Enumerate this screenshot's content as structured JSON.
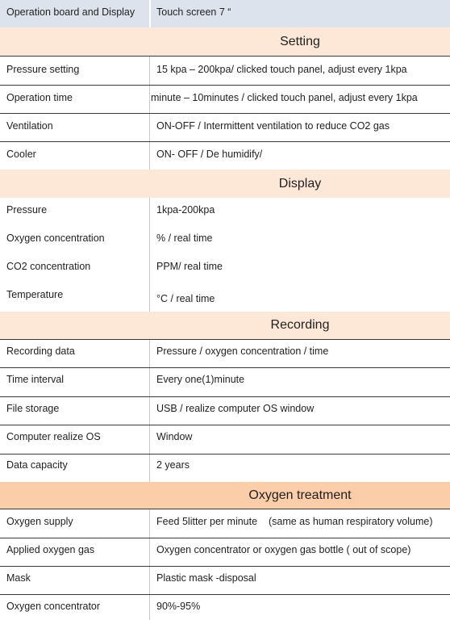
{
  "top": {
    "label": "Operation board and Display",
    "value": "Touch screen 7 “"
  },
  "setting": {
    "title": "Setting",
    "rows": [
      {
        "label": "Pressure setting",
        "value": "15 kpa – 200kpa/ clicked touch panel, adjust every 1kpa"
      },
      {
        "label": "Operation time",
        "value": "minute – 10minutes / clicked touch panel, adjust every 1kpa"
      },
      {
        "label": "Ventilation",
        "value": "ON-OFF / Intermittent ventilation to reduce CO2 gas"
      },
      {
        "label": "Cooler",
        "value": "ON- OFF / De humidify/"
      }
    ]
  },
  "display": {
    "title": "Display",
    "rows": [
      {
        "label": "Pressure",
        "value": "1kpa-200kpa"
      },
      {
        "label": "Oxygen concentration",
        "value": "% / real time"
      },
      {
        "label": "CO2 concentration",
        "value": "PPM/ real time"
      },
      {
        "label": "Temperature",
        "value": "°C / real time"
      }
    ]
  },
  "recording": {
    "title": "Recording",
    "rows": [
      {
        "label": "Recording data",
        "value": "Pressure / oxygen concentration / time"
      },
      {
        "label": "Time interval",
        "value": "Every one(1)minute"
      },
      {
        "label": "File storage",
        "value": "USB / realize computer OS window"
      },
      {
        "label": "Computer realize OS",
        "value": "Window"
      },
      {
        "label": "Data capacity",
        "value": "2 years"
      }
    ]
  },
  "oxygen": {
    "title": "Oxygen treatment",
    "rows": [
      {
        "label": "Oxygen supply",
        "value": "Feed 5litter per minute    (same as human respiratory volume)"
      },
      {
        "label": "Applied oxygen gas",
        "value": "Oxygen concentrator or oxygen gas bottle ( out of scope)"
      },
      {
        "label": "Mask",
        "value": "Plastic mask -disposal"
      },
      {
        "label": "Oxygen concentrator",
        "value": "90%-95%"
      }
    ]
  }
}
